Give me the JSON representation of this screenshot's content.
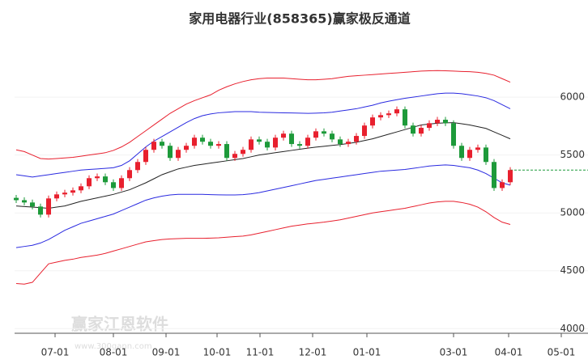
{
  "chart_data": {
    "type": "candlestick",
    "title": "家用电器行业(858365)赢家极反通道",
    "watermark": "赢家江恩软件",
    "watermark_url": "www.300gann.com",
    "up_color": "#e8202e",
    "down_color": "#1d9a3a",
    "open": [
      5130,
      5110,
      5090,
      5055,
      4985,
      5125,
      5160,
      5175,
      5195,
      5230,
      5300,
      5315,
      5265,
      5215,
      5300,
      5370,
      5440,
      5545,
      5615,
      5580,
      5475,
      5545,
      5580,
      5650,
      5615,
      5580,
      5595,
      5475,
      5510,
      5545,
      5635,
      5615,
      5565,
      5650,
      5685,
      5595,
      5580,
      5650,
      5705,
      5685,
      5635,
      5595,
      5615,
      5665,
      5755,
      5825,
      5845,
      5860,
      5895,
      5755,
      5685,
      5735,
      5775,
      5805,
      5775,
      5580,
      5475,
      5545,
      5565,
      5440,
      5215,
      5265
    ],
    "high": [
      5155,
      5135,
      5115,
      5080,
      5150,
      5185,
      5200,
      5220,
      5255,
      5325,
      5340,
      5340,
      5290,
      5325,
      5395,
      5465,
      5570,
      5640,
      5640,
      5605,
      5570,
      5605,
      5675,
      5675,
      5640,
      5620,
      5620,
      5535,
      5570,
      5660,
      5660,
      5640,
      5675,
      5710,
      5710,
      5620,
      5675,
      5730,
      5730,
      5710,
      5660,
      5640,
      5690,
      5780,
      5850,
      5870,
      5885,
      5920,
      5920,
      5780,
      5760,
      5800,
      5830,
      5830,
      5800,
      5605,
      5570,
      5590,
      5590,
      5465,
      5290,
      5395
    ],
    "low": [
      5085,
      5065,
      5030,
      4960,
      4960,
      5100,
      5135,
      5150,
      5170,
      5205,
      5275,
      5240,
      5190,
      5190,
      5275,
      5345,
      5415,
      5520,
      5555,
      5450,
      5450,
      5520,
      5555,
      5590,
      5555,
      5555,
      5450,
      5450,
      5485,
      5520,
      5590,
      5540,
      5540,
      5625,
      5570,
      5555,
      5555,
      5625,
      5660,
      5610,
      5570,
      5570,
      5590,
      5640,
      5730,
      5800,
      5820,
      5835,
      5730,
      5660,
      5660,
      5710,
      5750,
      5750,
      5555,
      5450,
      5450,
      5520,
      5415,
      5190,
      5190,
      5240
    ],
    "close": [
      5110,
      5090,
      5055,
      4985,
      5125,
      5160,
      5175,
      5195,
      5230,
      5300,
      5315,
      5265,
      5215,
      5300,
      5370,
      5440,
      5545,
      5615,
      5580,
      5475,
      5545,
      5580,
      5650,
      5615,
      5580,
      5595,
      5475,
      5510,
      5545,
      5635,
      5615,
      5565,
      5650,
      5685,
      5595,
      5580,
      5650,
      5705,
      5685,
      5635,
      5595,
      5615,
      5665,
      5755,
      5825,
      5845,
      5860,
      5895,
      5755,
      5685,
      5735,
      5775,
      5805,
      5775,
      5580,
      5475,
      5545,
      5565,
      5440,
      5215,
      5265,
      5370
    ],
    "bands": [
      {
        "color": "#e8202e",
        "values": [
          5545,
          5530,
          5500,
          5470,
          5465,
          5470,
          5475,
          5480,
          5490,
          5500,
          5510,
          5520,
          5540,
          5570,
          5610,
          5660,
          5710,
          5760,
          5810,
          5860,
          5900,
          5940,
          5970,
          5995,
          6020,
          6060,
          6090,
          6115,
          6135,
          6150,
          6160,
          6165,
          6165,
          6165,
          6160,
          6155,
          6150,
          6150,
          6155,
          6160,
          6170,
          6180,
          6185,
          6190,
          6195,
          6200,
          6205,
          6210,
          6215,
          6220,
          6225,
          6228,
          6230,
          6228,
          6225,
          6222,
          6220,
          6215,
          6205,
          6190,
          6160,
          6130
        ]
      },
      {
        "color": "#2a2ae0",
        "values": [
          5330,
          5320,
          5310,
          5320,
          5330,
          5340,
          5350,
          5360,
          5370,
          5375,
          5380,
          5385,
          5390,
          5410,
          5450,
          5510,
          5570,
          5620,
          5660,
          5700,
          5740,
          5780,
          5815,
          5840,
          5855,
          5865,
          5870,
          5875,
          5875,
          5875,
          5870,
          5868,
          5866,
          5865,
          5864,
          5862,
          5860,
          5862,
          5865,
          5870,
          5880,
          5890,
          5900,
          5915,
          5930,
          5950,
          5965,
          5978,
          5990,
          6000,
          6010,
          6020,
          6030,
          6035,
          6035,
          6030,
          6020,
          6010,
          5995,
          5970,
          5935,
          5900
        ]
      },
      {
        "color": "#222222",
        "values": [
          5060,
          5055,
          5050,
          5045,
          5040,
          5050,
          5060,
          5080,
          5100,
          5115,
          5130,
          5145,
          5160,
          5180,
          5200,
          5230,
          5260,
          5295,
          5330,
          5355,
          5380,
          5395,
          5410,
          5420,
          5430,
          5440,
          5450,
          5460,
          5470,
          5485,
          5500,
          5510,
          5520,
          5530,
          5540,
          5550,
          5560,
          5568,
          5575,
          5583,
          5590,
          5600,
          5610,
          5625,
          5640,
          5660,
          5680,
          5700,
          5720,
          5740,
          5760,
          5768,
          5775,
          5778,
          5780,
          5770,
          5760,
          5745,
          5730,
          5700,
          5670,
          5640
        ]
      },
      {
        "color": "#2a2ae0",
        "values": [
          4700,
          4710,
          4720,
          4740,
          4770,
          4810,
          4850,
          4880,
          4910,
          4930,
          4950,
          4970,
          4990,
          5020,
          5050,
          5080,
          5110,
          5130,
          5145,
          5155,
          5160,
          5160,
          5160,
          5160,
          5158,
          5156,
          5155,
          5155,
          5158,
          5165,
          5175,
          5190,
          5205,
          5220,
          5235,
          5250,
          5265,
          5280,
          5290,
          5300,
          5310,
          5320,
          5330,
          5340,
          5350,
          5360,
          5365,
          5370,
          5375,
          5385,
          5395,
          5405,
          5410,
          5415,
          5410,
          5400,
          5390,
          5370,
          5340,
          5300,
          5260,
          5240
        ]
      },
      {
        "color": "#e8202e",
        "values": [
          4390,
          4385,
          4400,
          4480,
          4560,
          4575,
          4590,
          4600,
          4615,
          4625,
          4635,
          4650,
          4670,
          4690,
          4710,
          4730,
          4750,
          4760,
          4770,
          4775,
          4778,
          4780,
          4780,
          4780,
          4782,
          4785,
          4790,
          4795,
          4800,
          4810,
          4825,
          4840,
          4855,
          4870,
          4885,
          4895,
          4905,
          4912,
          4920,
          4930,
          4940,
          4955,
          4970,
          4985,
          5000,
          5010,
          5020,
          5030,
          5040,
          5055,
          5070,
          5085,
          5095,
          5100,
          5100,
          5090,
          5075,
          5050,
          5010,
          4960,
          4920,
          4900
        ]
      }
    ],
    "reference_line": {
      "value": 5370,
      "color": "#1d9a3a"
    },
    "ylim": [
      3960,
      6560
    ],
    "yticks": [
      4000,
      4500,
      5000,
      5500,
      6000
    ],
    "xlim": [
      -0.2,
      70.6
    ],
    "xticks": [
      {
        "value": 4.8,
        "label": "07-01"
      },
      {
        "value": 12,
        "label": "08-01"
      },
      {
        "value": 18.5,
        "label": "09-01"
      },
      {
        "value": 24.8,
        "label": "10-01"
      },
      {
        "value": 30.1,
        "label": "11-01"
      },
      {
        "value": 36.6,
        "label": "12-01"
      },
      {
        "value": 43.3,
        "label": "01-01"
      },
      {
        "value": 54,
        "label": "03-01"
      },
      {
        "value": 60.8,
        "label": "04-01"
      },
      {
        "value": 67.3,
        "label": "05-01"
      }
    ]
  }
}
